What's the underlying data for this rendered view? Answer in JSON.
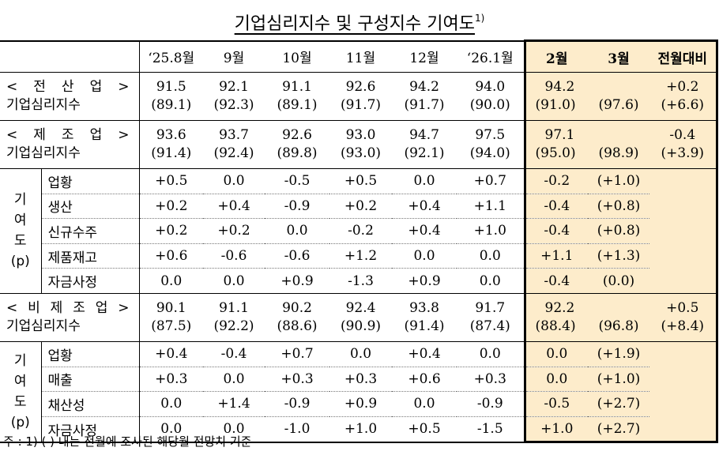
{
  "title": "기업심리지수 및 구성지수 기여도",
  "title_note": "1)",
  "columns": [
    "‘25.8월",
    "9월",
    "10월",
    "11월",
    "12월",
    "‘26.1월",
    "2월",
    "3월",
    "전월대비"
  ],
  "blocks": [
    {
      "label_top": "< 전 산 업 >",
      "label_bottom": "기업심리지수",
      "values": [
        [
          "91.5",
          "(89.1)"
        ],
        [
          "92.1",
          "(92.3)"
        ],
        [
          "91.1",
          "(89.1)"
        ],
        [
          "92.6",
          "(91.7)"
        ],
        [
          "94.2",
          "(91.7)"
        ],
        [
          "94.0",
          "(90.0)"
        ],
        [
          "94.2",
          "(91.0)"
        ],
        [
          "",
          "(97.6)"
        ],
        [
          "+0.2",
          "(+6.6)"
        ]
      ]
    },
    {
      "label_top": "< 제 조 업 >",
      "label_bottom": "기업심리지수",
      "values": [
        [
          "93.6",
          "(91.4)"
        ],
        [
          "93.7",
          "(92.4)"
        ],
        [
          "92.6",
          "(89.8)"
        ],
        [
          "93.0",
          "(93.0)"
        ],
        [
          "94.7",
          "(92.1)"
        ],
        [
          "97.5",
          "(94.0)"
        ],
        [
          "97.1",
          "(95.0)"
        ],
        [
          "",
          "(98.9)"
        ],
        [
          "-0.4",
          "(+3.9)"
        ]
      ],
      "contrib_label": [
        "기",
        "여",
        "도",
        "(p)"
      ],
      "rows": [
        {
          "label": "업황",
          "values": [
            "+0.5",
            "0.0",
            "-0.5",
            "+0.5",
            "0.0",
            "+0.7",
            "-0.2",
            "(+1.0)",
            ""
          ]
        },
        {
          "label": "생산",
          "values": [
            "+0.2",
            "+0.4",
            "-0.9",
            "+0.2",
            "+0.4",
            "+1.1",
            "-0.4",
            "(+0.8)",
            ""
          ]
        },
        {
          "label": "신규수주",
          "values": [
            "+0.2",
            "+0.2",
            "0.0",
            "-0.2",
            "+0.4",
            "+1.0",
            "-0.4",
            "(+0.8)",
            ""
          ]
        },
        {
          "label": "제품재고",
          "values": [
            "+0.6",
            "-0.6",
            "-0.6",
            "+1.2",
            "0.0",
            "0.0",
            "+1.1",
            "(+1.3)",
            ""
          ]
        },
        {
          "label": "자금사정",
          "values": [
            "0.0",
            "0.0",
            "+0.9",
            "-1.3",
            "+0.9",
            "0.0",
            "-0.4",
            "(0.0)",
            ""
          ]
        }
      ]
    },
    {
      "label_top": "< 비 제 조 업 >",
      "label_bottom": "기업심리지수",
      "values": [
        [
          "90.1",
          "(87.5)"
        ],
        [
          "91.1",
          "(92.2)"
        ],
        [
          "90.2",
          "(88.6)"
        ],
        [
          "92.4",
          "(90.9)"
        ],
        [
          "93.8",
          "(91.4)"
        ],
        [
          "91.7",
          "(87.4)"
        ],
        [
          "92.2",
          "(88.4)"
        ],
        [
          "",
          "(96.8)"
        ],
        [
          "+0.5",
          "(+8.4)"
        ]
      ],
      "contrib_label": [
        "기",
        "여",
        "도",
        "(p)"
      ],
      "rows": [
        {
          "label": "업황",
          "values": [
            "+0.4",
            "-0.4",
            "+0.7",
            "0.0",
            "+0.4",
            "0.0",
            "0.0",
            "(+1.9)",
            ""
          ]
        },
        {
          "label": "매출",
          "values": [
            "+0.3",
            "0.0",
            "+0.3",
            "+0.3",
            "+0.6",
            "+0.3",
            "0.0",
            "(+1.0)",
            ""
          ]
        },
        {
          "label": "채산성",
          "values": [
            "0.0",
            "+1.4",
            "-0.9",
            "+0.9",
            "0.0",
            "-0.9",
            "-0.5",
            "(+2.7)",
            ""
          ]
        },
        {
          "label": "자금사정",
          "values": [
            "0.0",
            "0.0",
            "-1.0",
            "+1.0",
            "+0.5",
            "-1.5",
            "+1.0",
            "(+2.7)",
            ""
          ]
        }
      ]
    }
  ],
  "footnote": "주 : 1) (   ) 내는 전월에 조사된 해당월 전망치 기준",
  "colors": {
    "highlight": "#fdeccb",
    "frame": "#000000"
  }
}
